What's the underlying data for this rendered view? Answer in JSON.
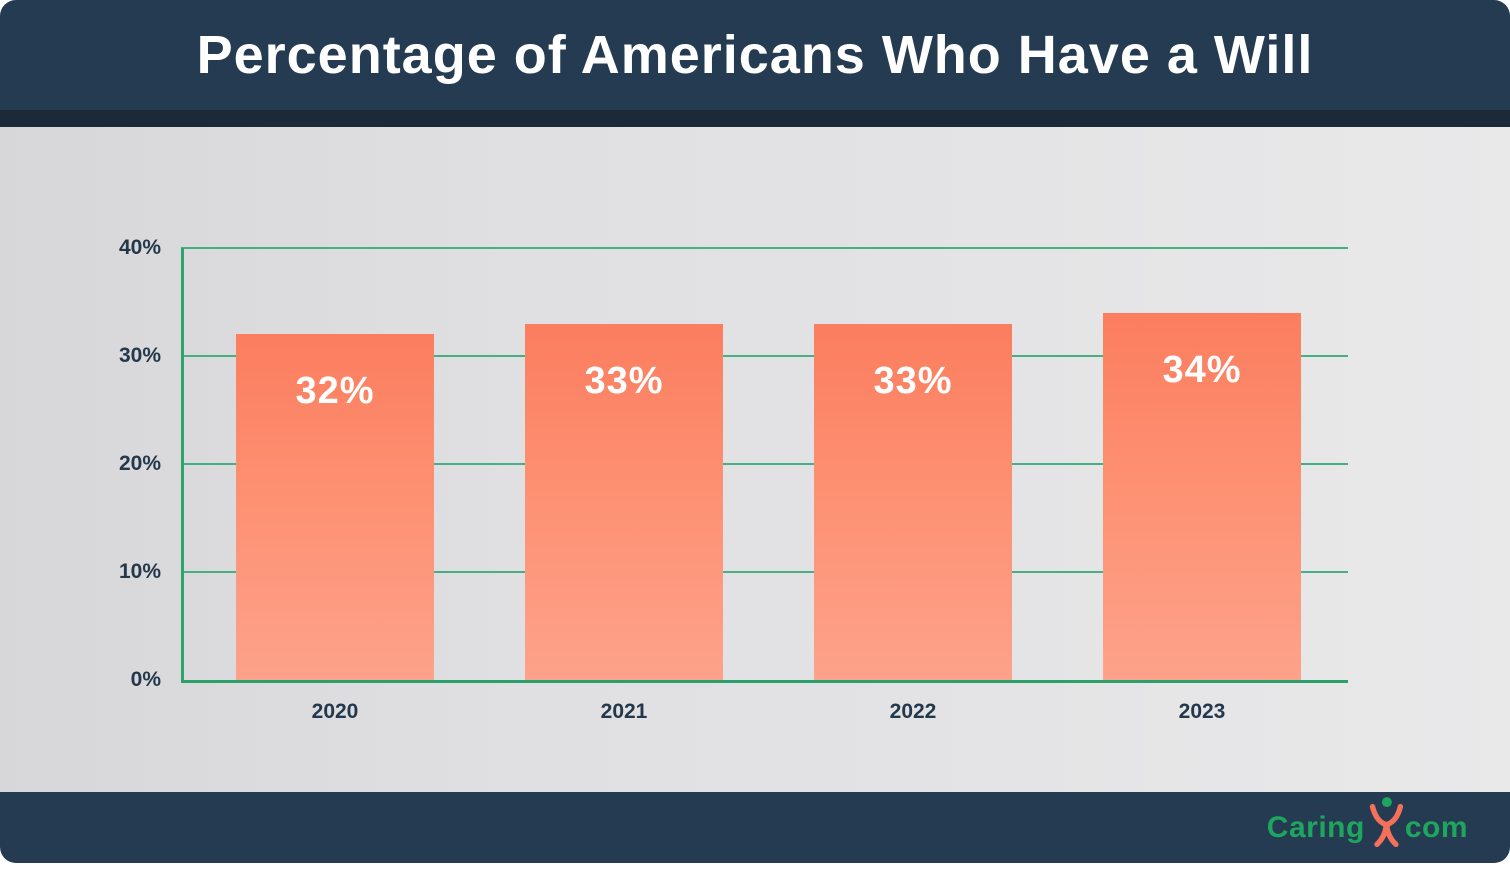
{
  "page": {
    "title": "Percentage of Americans Who Have a Will"
  },
  "footer": {
    "brand_caring": "Caring",
    "brand_com": "com",
    "logo_icon": "person-raised-arms-icon"
  },
  "colors": {
    "header_bg": "#253b51",
    "header_strip": "#1b2938",
    "chart_bg_left": "#d7d7d9",
    "chart_bg_right": "#e9e9ea",
    "gridline_green": "#47af82",
    "axis_green": "#2aa06a",
    "bar_gradient_top": "#fc7d5f",
    "bar_gradient_bottom": "#fda28b",
    "tick_text": "#24384c",
    "bar_label_text": "#ffffff",
    "logo_green": "#1ea65e",
    "logo_orange": "#f3705a"
  },
  "chart_data": {
    "type": "bar",
    "title": "Percentage of Americans Who Have a Will",
    "categories": [
      "2020",
      "2021",
      "2022",
      "2023"
    ],
    "values": [
      32,
      33,
      33,
      34
    ],
    "value_labels": [
      "32%",
      "33%",
      "33%",
      "34%"
    ],
    "ylim": [
      0,
      40
    ],
    "yticks": [
      0,
      10,
      20,
      30,
      40
    ],
    "ytick_labels": [
      "0%",
      "10%",
      "20%",
      "30%",
      "40%"
    ],
    "grid": true,
    "legend_position": "none",
    "xlabel": "",
    "ylabel": ""
  }
}
